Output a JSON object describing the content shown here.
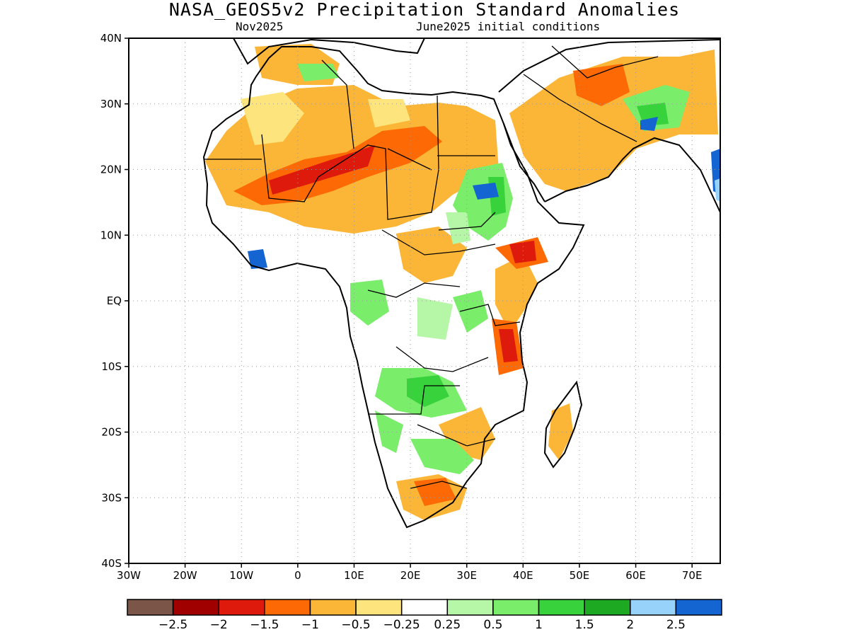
{
  "title": "NASA_GEOS5v2 Precipitation Standard Anomalies",
  "valid_month": "Nov2025",
  "init_conditions": "June2025 initial conditions",
  "map": {
    "lon_range": [
      -30,
      75
    ],
    "lat_range": [
      -40,
      40
    ],
    "lat_ticks": [
      {
        "value": 40,
        "label": "40N"
      },
      {
        "value": 30,
        "label": "30N"
      },
      {
        "value": 20,
        "label": "20N"
      },
      {
        "value": 10,
        "label": "10N"
      },
      {
        "value": 0,
        "label": "EQ"
      },
      {
        "value": -10,
        "label": "10S"
      },
      {
        "value": -20,
        "label": "20S"
      },
      {
        "value": -30,
        "label": "30S"
      },
      {
        "value": -40,
        "label": "40S"
      }
    ],
    "lon_ticks": [
      {
        "value": -30,
        "label": "30W"
      },
      {
        "value": -20,
        "label": "20W"
      },
      {
        "value": -10,
        "label": "10W"
      },
      {
        "value": 0,
        "label": "0"
      },
      {
        "value": 10,
        "label": "10E"
      },
      {
        "value": 20,
        "label": "20E"
      },
      {
        "value": 30,
        "label": "30E"
      },
      {
        "value": 40,
        "label": "40E"
      },
      {
        "value": 50,
        "label": "50E"
      },
      {
        "value": 60,
        "label": "60E"
      },
      {
        "value": 70,
        "label": "70E"
      }
    ],
    "gridlines": "dotted"
  },
  "colorbar": {
    "colors": [
      "#7b5548",
      "#a00000",
      "#dd1a0c",
      "#fd6a05",
      "#fcb637",
      "#fde47c",
      "#ffffff",
      "#b5f7a6",
      "#7aee6b",
      "#37d23c",
      "#1ea922",
      "#96d2fa",
      "#1464d2"
    ],
    "labels": [
      "−2.5",
      "−2",
      "−1.5",
      "−1",
      "−0.5",
      "−0.25",
      "0.25",
      "0.5",
      "1",
      "1.5",
      "2",
      "2.5"
    ]
  },
  "anomaly_palette": {
    "land_neutral": "#ffffff",
    "dry_light": "#fde47c",
    "dry_moderate": "#fcb637",
    "dry_strong": "#fd6a05",
    "dry_severe": "#dd1a0c",
    "wet_light": "#b5f7a6",
    "wet_moderate": "#7aee6b",
    "wet_strong": "#37d23c",
    "wet_extreme": "#1464d2"
  }
}
